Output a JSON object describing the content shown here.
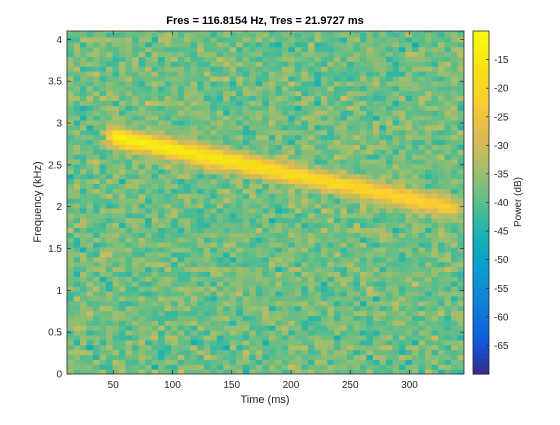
{
  "chart_data": {
    "type": "heatmap",
    "title": "Fres = 116.8154 Hz, Tres = 21.9727 ms",
    "xlabel": "Time (ms)",
    "ylabel": "Frequency (kHz)",
    "xlim": [
      11,
      346
    ],
    "ylim": [
      0,
      4.1
    ],
    "x_ticks": [
      50,
      100,
      150,
      200,
      250,
      300
    ],
    "y_ticks": [
      0,
      0.5,
      1,
      1.5,
      2,
      2.5,
      3,
      3.5,
      4
    ],
    "colorbar": {
      "label": "Power (dB)",
      "limits": [
        -70,
        -10
      ],
      "ticks": [
        -65,
        -60,
        -55,
        -50,
        -45,
        -40,
        -35,
        -30,
        -25,
        -20,
        -15
      ],
      "colormap": "parula"
    },
    "grid": false,
    "background_level_db": -38,
    "noise_spread_db": 7,
    "chirp": {
      "description": "linearly descending tone",
      "start": {
        "time_ms": 47,
        "freq_khz": 2.85,
        "power_db": -12
      },
      "end": {
        "time_ms": 340,
        "freq_khz": 1.98,
        "power_db": -22
      },
      "bandwidth_khz": 0.12
    },
    "time_resolution_ms": 21.9727,
    "freq_resolution_hz": 116.8154
  }
}
